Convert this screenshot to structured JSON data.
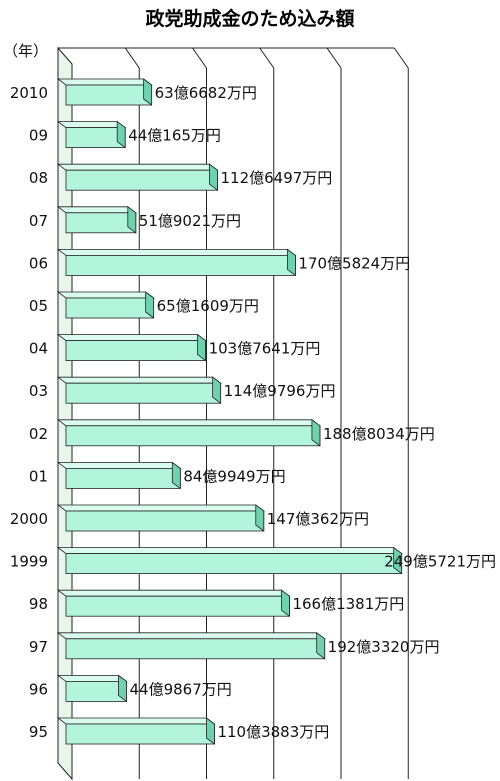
{
  "chart_data": {
    "type": "bar",
    "orientation": "horizontal",
    "title": "政党助成金のため込み額",
    "ylabel": "（年）",
    "categories": [
      "2010",
      "09",
      "08",
      "07",
      "06",
      "05",
      "04",
      "03",
      "02",
      "01",
      "2000",
      "1999",
      "98",
      "97",
      "96",
      "95"
    ],
    "values": [
      63.6682,
      44.0165,
      112.6497,
      51.9021,
      170.5824,
      65.1609,
      103.7641,
      114.9796,
      188.8034,
      84.9949,
      147.0362,
      249.5721,
      166.1381,
      192.332,
      44.9867,
      110.3883
    ],
    "data_labels": [
      "63億6682万円",
      "44億165万円",
      "112億6497万円",
      "51億9021万円",
      "170億5824万円",
      "65億1609万円",
      "103億7641万円",
      "114億9796万円",
      "188億8034万円",
      "84億9949万円",
      "147億362万円",
      "249億5721万円",
      "166億1381万円",
      "192億3320万円",
      "44億9867万円",
      "110億3883万円"
    ],
    "unit": "億円",
    "xlim": [
      0,
      250
    ],
    "grid": true,
    "legend": "none",
    "colors": {
      "bar_front": "#b3f5dc",
      "bar_top": "#d9fcef",
      "bar_side": "#6fd1ad",
      "wall": "#e6f7e9",
      "gridline": "#222222"
    }
  }
}
